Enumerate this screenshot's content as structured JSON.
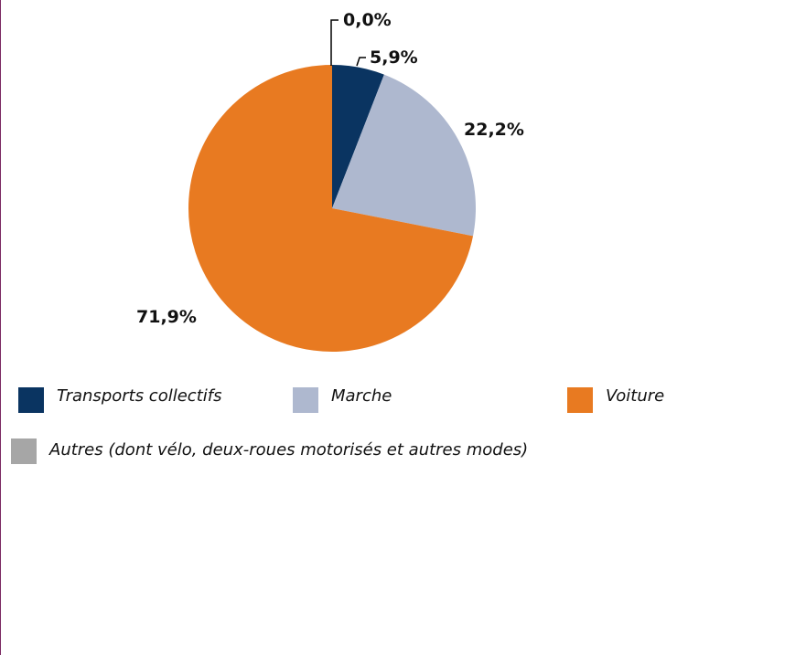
{
  "chart_data": {
    "type": "pie",
    "title": "",
    "slices": [
      {
        "name": "Autres (dont vélo, deux-roues motorisés et autres modes)",
        "value": 0.0,
        "label": "0,0%",
        "color": "#a6a6a6"
      },
      {
        "name": "Transports collectifs",
        "value": 5.9,
        "label": "5,9%",
        "color": "#0a3461"
      },
      {
        "name": "Marche",
        "value": 22.2,
        "label": "22,2%",
        "color": "#aeb8cf"
      },
      {
        "name": "Voiture",
        "value": 71.9,
        "label": "71,9%",
        "color": "#e87a21"
      }
    ],
    "legend": {
      "position": "bottom",
      "entries": [
        {
          "label": "Transports collectifs",
          "color": "#0a3461"
        },
        {
          "label": "Marche",
          "color": "#aeb8cf"
        },
        {
          "label": "Voiture",
          "color": "#e87a21"
        },
        {
          "label": "Autres (dont vélo, deux-roues motorisés et autres modes)",
          "color": "#a6a6a6"
        }
      ]
    }
  }
}
